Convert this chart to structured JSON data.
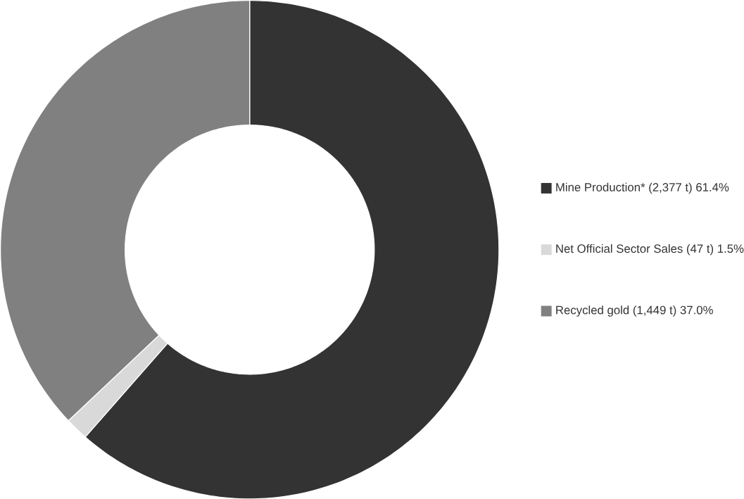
{
  "chart_data": {
    "type": "donut",
    "categories": [
      "Mine Production* (2,377 t) 61.4%",
      "Net Official Sector Sales (47 t) 1.5%",
      "Recycled gold (1,449 t) 37.0%"
    ],
    "values": [
      61.4,
      1.5,
      37.0
    ],
    "colors": [
      "#333333",
      "#d9d9d9",
      "#808080"
    ],
    "legend": "right"
  }
}
